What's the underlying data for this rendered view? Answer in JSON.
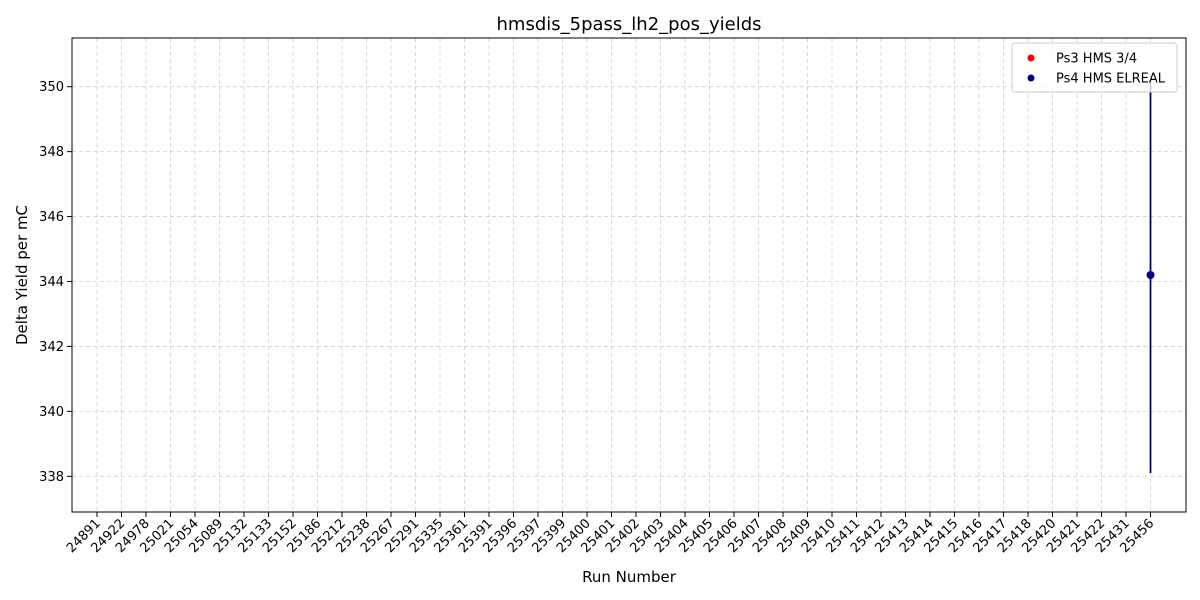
{
  "chart_data": {
    "type": "scatter",
    "title": "hmsdis_5pass_lh2_pos_yields",
    "xlabel": "Run Number",
    "ylabel": "Delta Yield per mC",
    "categories": [
      "24891",
      "24922",
      "24978",
      "25021",
      "25054",
      "25089",
      "25132",
      "25133",
      "25152",
      "25186",
      "25212",
      "25238",
      "25267",
      "25291",
      "25335",
      "25361",
      "25391",
      "25396",
      "25397",
      "25399",
      "25400",
      "25401",
      "25402",
      "25403",
      "25404",
      "25405",
      "25406",
      "25407",
      "25408",
      "25409",
      "25410",
      "25411",
      "25412",
      "25413",
      "25414",
      "25415",
      "25416",
      "25417",
      "25418",
      "25420",
      "25421",
      "25422",
      "25431",
      "25456"
    ],
    "yticks": [
      338,
      340,
      342,
      344,
      346,
      348,
      350
    ],
    "ylim": [
      336.9,
      351.5
    ],
    "grid": true,
    "legend_position": "top-right",
    "series": [
      {
        "name": "Ps3 HMS 3/4",
        "color": "#ff0000",
        "points": []
      },
      {
        "name": "Ps4 HMS ELREAL",
        "color": "#000080",
        "points": [
          {
            "x": "25456",
            "y": 344.2,
            "err_low": 338.1,
            "err_high": 350.2
          }
        ]
      }
    ]
  }
}
